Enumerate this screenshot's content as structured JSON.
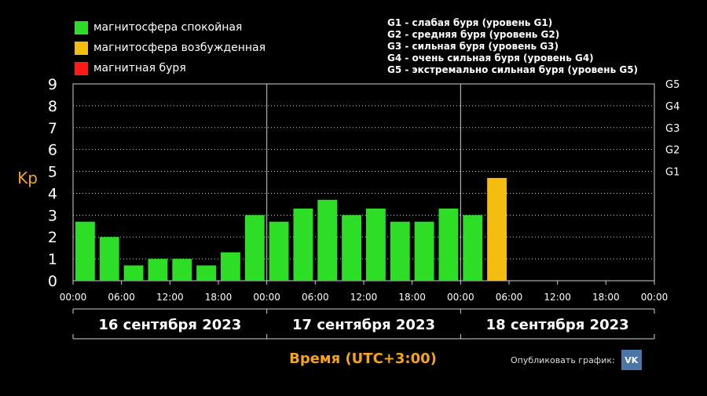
{
  "legend": [
    {
      "label": "магнитосфера спокойная",
      "color": "#2ddd26"
    },
    {
      "label": "магнитосфера возбужденная",
      "color": "#f5bd0f"
    },
    {
      "label": "магнитная буря",
      "color": "#ff1a1a"
    }
  ],
  "storm_levels": [
    "G1 - слабая буря (уровень G1)",
    "G2 - средняя буря (уровень G2)",
    "G3 - сильная буря (уровень G3)",
    "G4 - очень сильная буря (уровень G4)",
    "G5 - экстремально сильная буря (уровень G5)"
  ],
  "share": {
    "label": "Опубликовать график:",
    "vk_icon": "VK"
  },
  "chart_data": {
    "type": "bar",
    "ylabel": "Kp",
    "xlabel": "Время (UTC+3:00)",
    "ylim": [
      0,
      9
    ],
    "y_ticks": [
      "0",
      "1",
      "2",
      "3",
      "4",
      "5",
      "6",
      "7",
      "8",
      "9"
    ],
    "right_ticks": [
      {
        "value": 5,
        "label": "G1"
      },
      {
        "value": 6,
        "label": "G2"
      },
      {
        "value": 7,
        "label": "G3"
      },
      {
        "value": 8,
        "label": "G4"
      },
      {
        "value": 9,
        "label": "G5"
      }
    ],
    "x_ticks": [
      "00:00",
      "06:00",
      "12:00",
      "18:00",
      "00:00",
      "06:00",
      "12:00",
      "18:00",
      "00:00",
      "06:00",
      "12:00",
      "18:00",
      "00:00"
    ],
    "days": [
      "16 сентября 2023",
      "17 сентября 2023",
      "18 сентября 2023"
    ],
    "slots": 24,
    "grid": true,
    "values": [
      2.7,
      2.0,
      0.7,
      1.0,
      1.0,
      0.7,
      1.3,
      3.0,
      2.7,
      3.3,
      3.7,
      3.0,
      3.3,
      2.7,
      2.7,
      3.3,
      3.0,
      4.7
    ],
    "colors": [
      "#2ddd26",
      "#2ddd26",
      "#2ddd26",
      "#2ddd26",
      "#2ddd26",
      "#2ddd26",
      "#2ddd26",
      "#2ddd26",
      "#2ddd26",
      "#2ddd26",
      "#2ddd26",
      "#2ddd26",
      "#2ddd26",
      "#2ddd26",
      "#2ddd26",
      "#2ddd26",
      "#2ddd26",
      "#f5bd0f"
    ]
  }
}
